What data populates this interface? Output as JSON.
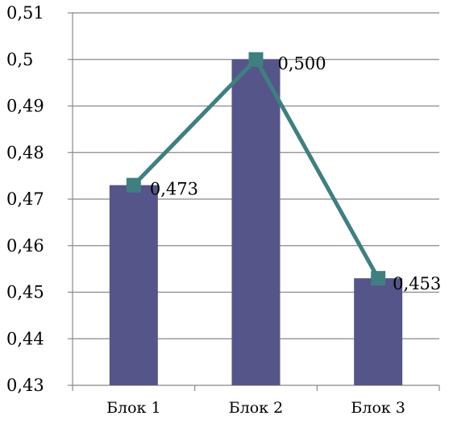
{
  "chart_data": {
    "type": "bar",
    "categories": [
      "Блок 1",
      "Блок 2",
      "Блок 3"
    ],
    "series": [
      {
        "type": "bar",
        "values": [
          0.473,
          0.5,
          0.453
        ],
        "color": "#55558a"
      },
      {
        "type": "line",
        "values": [
          0.473,
          0.5,
          0.453
        ],
        "color": "#3f7f80",
        "marker": "square"
      }
    ],
    "data_labels": [
      "0,473",
      "0,500",
      "0,453"
    ],
    "yticks": [
      0.43,
      0.44,
      0.45,
      0.46,
      0.47,
      0.48,
      0.49,
      0.5,
      0.51
    ],
    "ytick_labels": [
      "0,43",
      "0,44",
      "0,45",
      "0,46",
      "0,47",
      "0,48",
      "0,49",
      "0,5",
      "0,51"
    ],
    "ylim": [
      0.43,
      0.51
    ],
    "grid": true,
    "legend": "none",
    "colors": {
      "gridline": "#888888",
      "axis": "#888888"
    }
  }
}
